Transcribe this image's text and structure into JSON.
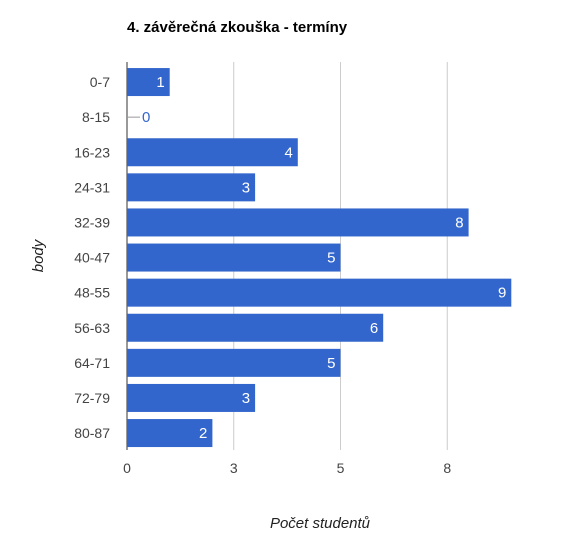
{
  "chart_data": {
    "type": "bar",
    "orientation": "horizontal",
    "title": "4. závěrečná zkouška - termíny",
    "xlabel": "Počet studentů",
    "ylabel": "body",
    "categories": [
      "0-7",
      "8-15",
      "16-23",
      "24-31",
      "32-39",
      "40-47",
      "48-55",
      "56-63",
      "64-71",
      "72-79",
      "80-87"
    ],
    "values": [
      1,
      0,
      4,
      3,
      8,
      5,
      9,
      6,
      5,
      3,
      2
    ],
    "x_ticks": [
      "0",
      "3",
      "5",
      "8"
    ],
    "xlim": [
      0,
      9
    ],
    "grid": true,
    "bar_color": "#3366cc",
    "data_label_color": "#ffffff",
    "zero_label_color": "#3366cc"
  }
}
